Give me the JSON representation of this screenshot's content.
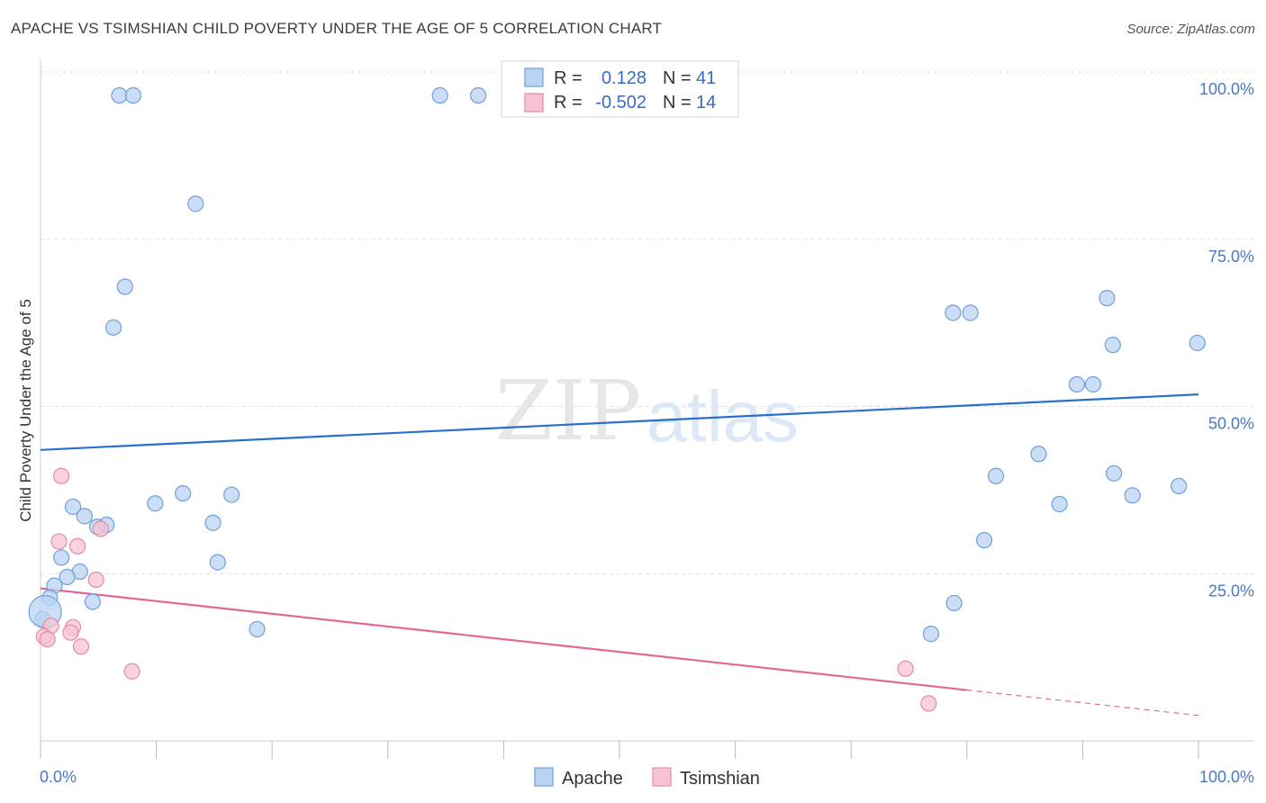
{
  "title": "APACHE VS TSIMSHIAN CHILD POVERTY UNDER THE AGE OF 5 CORRELATION CHART",
  "source": "Source: ZipAtlas.com",
  "watermark": {
    "zip": "ZIP",
    "atlas": "atlas"
  },
  "colors": {
    "apache_fill": "#b9d3f3",
    "apache_stroke": "#6e9fdc",
    "apache_line": "#2b6fcc",
    "tsimshian_fill": "#f7c3d1",
    "tsimshian_stroke": "#e58aa6",
    "tsimshian_line": "#e06a94",
    "grid": "#dddddd",
    "tick_label": "#4a78c2"
  },
  "legend": {
    "rows": [
      {
        "r_label": "R =",
        "r_value": "0.128",
        "n_label": "N =",
        "n_value": "41"
      },
      {
        "r_label": "R =",
        "r_value": "-0.502",
        "n_label": "N =",
        "n_value": "14"
      }
    ]
  },
  "chart_data": {
    "type": "scatter",
    "title": "APACHE VS TSIMSHIAN CHILD POVERTY UNDER THE AGE OF 5 CORRELATION CHART",
    "xlabel": "",
    "ylabel": "Child Poverty Under the Age of 5",
    "xlim": [
      0,
      100
    ],
    "ylim": [
      0,
      100
    ],
    "x_tick_labels": [
      "0.0%",
      "100.0%"
    ],
    "y_ticks": [
      25,
      50,
      75,
      100
    ],
    "y_tick_labels": [
      "25.0%",
      "50.0%",
      "75.0%",
      "100.0%"
    ],
    "grid": true,
    "legend_position": "top-center",
    "series": [
      {
        "name": "Apache",
        "points": [
          [
            6.8,
            96.5
          ],
          [
            8.0,
            96.5
          ],
          [
            34.5,
            96.5
          ],
          [
            37.8,
            96.5
          ],
          [
            13.4,
            80.3
          ],
          [
            7.3,
            67.9
          ],
          [
            6.3,
            61.8
          ],
          [
            12.3,
            37.0
          ],
          [
            16.5,
            36.8
          ],
          [
            9.9,
            35.5
          ],
          [
            2.8,
            35.0
          ],
          [
            3.8,
            33.6
          ],
          [
            5.7,
            32.3
          ],
          [
            14.9,
            32.6
          ],
          [
            4.9,
            32.0
          ],
          [
            1.8,
            27.4
          ],
          [
            15.3,
            26.7
          ],
          [
            3.4,
            25.3
          ],
          [
            2.3,
            24.5
          ],
          [
            1.2,
            23.2
          ],
          [
            0.8,
            21.4
          ],
          [
            4.5,
            20.8
          ],
          [
            0.2,
            18.2
          ],
          [
            18.7,
            16.7
          ],
          [
            78.8,
            64.0
          ],
          [
            80.3,
            64.0
          ],
          [
            92.1,
            66.2
          ],
          [
            92.6,
            59.2
          ],
          [
            99.9,
            59.5
          ],
          [
            89.5,
            53.3
          ],
          [
            90.9,
            53.3
          ],
          [
            86.2,
            42.9
          ],
          [
            82.5,
            39.6
          ],
          [
            92.7,
            40.0
          ],
          [
            94.3,
            36.7
          ],
          [
            98.3,
            38.1
          ],
          [
            88.0,
            35.4
          ],
          [
            81.5,
            30.0
          ],
          [
            78.9,
            20.6
          ],
          [
            76.9,
            16.0
          ],
          [
            0.4,
            19.3
          ]
        ],
        "trend": {
          "x": [
            0,
            100
          ],
          "y": [
            43.5,
            51.8
          ]
        }
      },
      {
        "name": "Tsimshian",
        "points": [
          [
            1.8,
            39.6
          ],
          [
            1.6,
            29.8
          ],
          [
            3.2,
            29.1
          ],
          [
            5.2,
            31.7
          ],
          [
            4.8,
            24.1
          ],
          [
            0.9,
            17.2
          ],
          [
            2.8,
            17.0
          ],
          [
            2.6,
            16.2
          ],
          [
            0.3,
            15.6
          ],
          [
            0.6,
            15.2
          ],
          [
            3.5,
            14.1
          ],
          [
            7.9,
            10.4
          ],
          [
            74.7,
            10.8
          ],
          [
            76.7,
            5.6
          ]
        ],
        "trend": {
          "x": [
            0,
            80
          ],
          "y": [
            22.8,
            7.6
          ],
          "dashed_to": {
            "x": 100,
            "y": 3.8
          }
        }
      }
    ]
  }
}
